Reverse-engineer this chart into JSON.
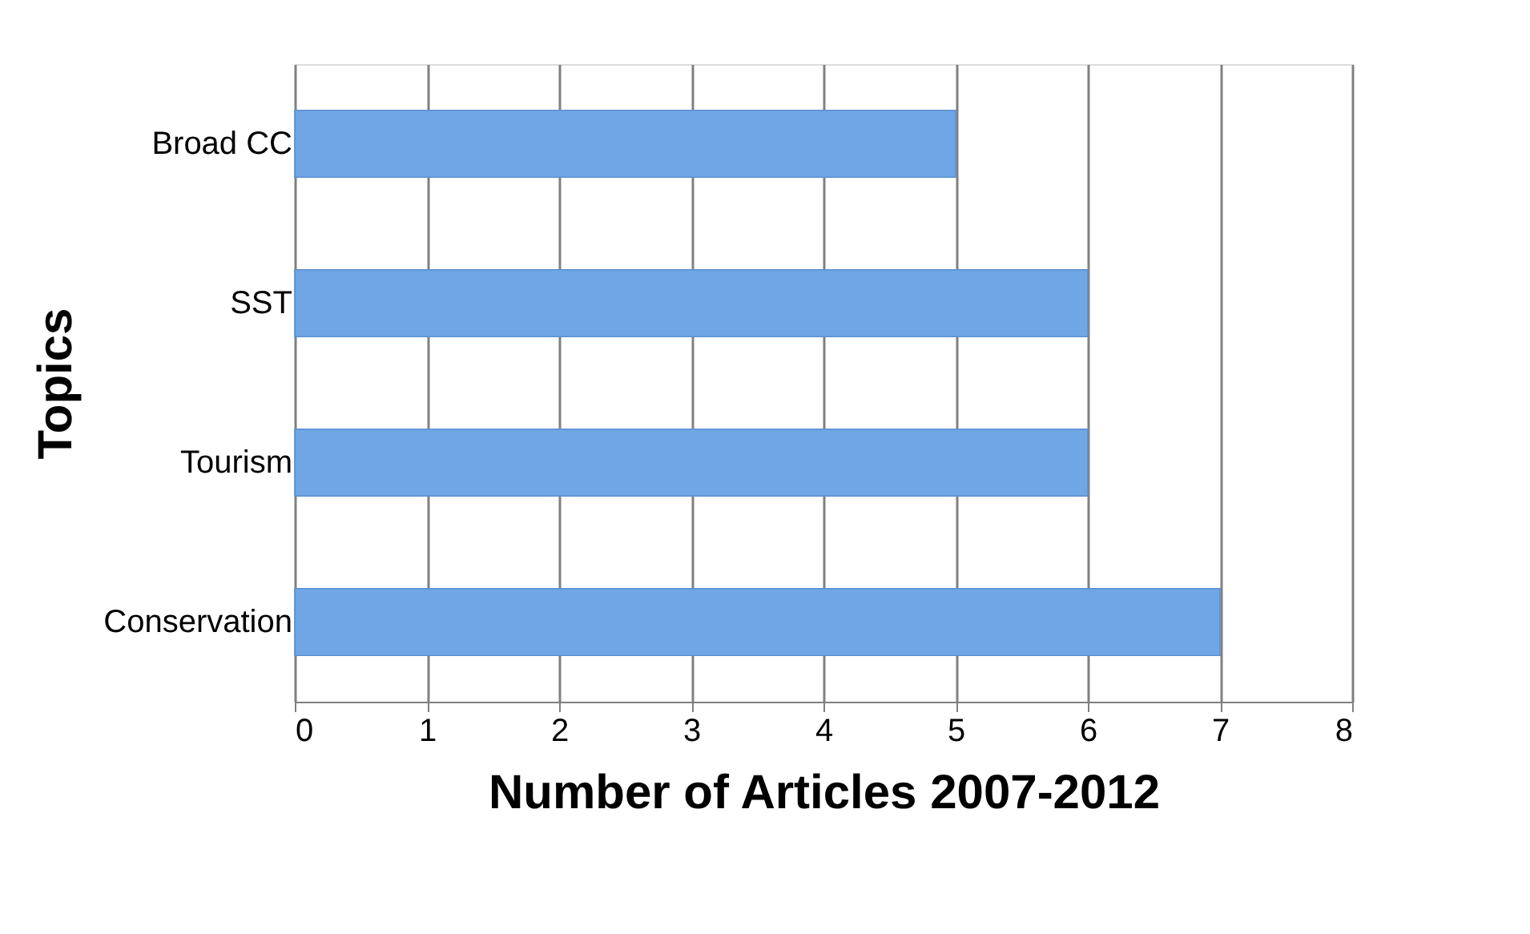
{
  "chart_data": {
    "type": "bar",
    "orientation": "horizontal",
    "xlabel": "Number of Articles 2007-2012",
    "ylabel": "Topics",
    "categories": [
      "Broad CC",
      "SST",
      "Tourism",
      "Conservation"
    ],
    "values": [
      5,
      6,
      6,
      7
    ],
    "color": "#6fa6e6",
    "xlim": [
      0,
      8
    ],
    "xticks": [
      0,
      1,
      2,
      3,
      4,
      5,
      6,
      7,
      8
    ],
    "grid": "x"
  }
}
